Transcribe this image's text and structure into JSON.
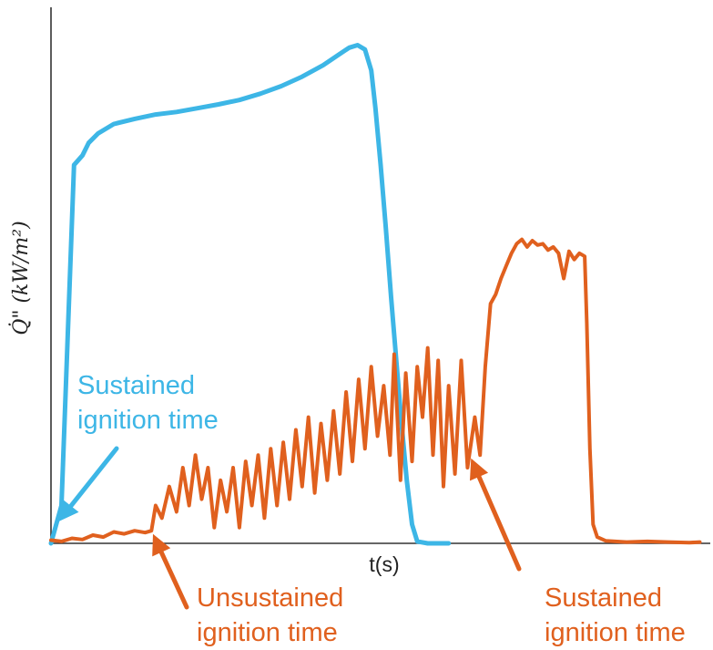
{
  "chart_data": {
    "type": "line",
    "xlabel": "t(s)",
    "ylabel": "Q̇\" (kW/m²)",
    "grid": false,
    "legend": "none",
    "series": [
      {
        "color": "#3db6e6",
        "points": [
          [
            0.0,
            0.0
          ],
          [
            1.0,
            6.0
          ],
          [
            2.2,
            60.0
          ],
          [
            3.0,
            61.5
          ],
          [
            3.6,
            63.5
          ],
          [
            4.5,
            65.0
          ],
          [
            6.0,
            66.5
          ],
          [
            8.0,
            67.3
          ],
          [
            10.0,
            68.0
          ],
          [
            12.0,
            68.4
          ],
          [
            14.0,
            69.0
          ],
          [
            16.0,
            69.6
          ],
          [
            18.0,
            70.3
          ],
          [
            20.0,
            71.3
          ],
          [
            22.0,
            72.5
          ],
          [
            24.0,
            74.0
          ],
          [
            26.0,
            75.8
          ],
          [
            27.5,
            77.5
          ],
          [
            28.5,
            78.6
          ],
          [
            29.3,
            79.0
          ],
          [
            30.0,
            78.3
          ],
          [
            30.6,
            75.0
          ],
          [
            31.0,
            69.0
          ],
          [
            31.5,
            60.0
          ],
          [
            32.0,
            50.0
          ],
          [
            32.5,
            39.0
          ],
          [
            33.0,
            29.0
          ],
          [
            33.5,
            19.0
          ],
          [
            34.0,
            10.0
          ],
          [
            34.5,
            3.0
          ],
          [
            35.0,
            0.3
          ],
          [
            36.0,
            0.0
          ],
          [
            38.0,
            0.0
          ]
        ]
      },
      {
        "color": "#e0601e",
        "points": [
          [
            0.0,
            0.5
          ],
          [
            1.0,
            0.3
          ],
          [
            2.0,
            0.8
          ],
          [
            3.0,
            0.6
          ],
          [
            4.0,
            1.3
          ],
          [
            5.0,
            1.0
          ],
          [
            6.0,
            1.8
          ],
          [
            7.0,
            1.5
          ],
          [
            8.0,
            2.0
          ],
          [
            9.0,
            1.7
          ],
          [
            9.6,
            2.0
          ],
          [
            10.0,
            6.0
          ],
          [
            10.6,
            4.0
          ],
          [
            11.3,
            9.0
          ],
          [
            12.0,
            5.0
          ],
          [
            12.6,
            12.0
          ],
          [
            13.2,
            6.0
          ],
          [
            13.8,
            14.0
          ],
          [
            14.4,
            7.0
          ],
          [
            15.0,
            12.0
          ],
          [
            15.6,
            2.5
          ],
          [
            16.2,
            10.0
          ],
          [
            16.8,
            5.0
          ],
          [
            17.4,
            12.0
          ],
          [
            18.0,
            2.5
          ],
          [
            18.6,
            13.0
          ],
          [
            19.2,
            6.0
          ],
          [
            19.8,
            14.0
          ],
          [
            20.4,
            4.0
          ],
          [
            21.0,
            15.0
          ],
          [
            21.6,
            6.0
          ],
          [
            22.2,
            16.0
          ],
          [
            22.8,
            7.0
          ],
          [
            23.4,
            18.0
          ],
          [
            24.0,
            9.0
          ],
          [
            24.6,
            20.0
          ],
          [
            25.2,
            8.0
          ],
          [
            25.8,
            19.0
          ],
          [
            26.4,
            10.0
          ],
          [
            27.0,
            21.0
          ],
          [
            27.6,
            11.0
          ],
          [
            28.2,
            24.0
          ],
          [
            28.8,
            13.0
          ],
          [
            29.4,
            26.0
          ],
          [
            30.0,
            15.0
          ],
          [
            30.6,
            28.0
          ],
          [
            31.2,
            17.0
          ],
          [
            31.8,
            25.0
          ],
          [
            32.4,
            14.0
          ],
          [
            32.8,
            30.0
          ],
          [
            33.4,
            10.0
          ],
          [
            33.9,
            27.0
          ],
          [
            34.5,
            13.0
          ],
          [
            35.0,
            28.0
          ],
          [
            35.5,
            20.0
          ],
          [
            36.0,
            31.0
          ],
          [
            36.5,
            14.0
          ],
          [
            37.0,
            29.0
          ],
          [
            37.5,
            9.0
          ],
          [
            38.0,
            25.0
          ],
          [
            38.6,
            11.0
          ],
          [
            39.2,
            29.0
          ],
          [
            39.8,
            12.0
          ],
          [
            40.5,
            20.0
          ],
          [
            41.0,
            14.0
          ],
          [
            41.5,
            28.0
          ],
          [
            42.0,
            38.0
          ],
          [
            42.5,
            39.5
          ],
          [
            43.0,
            42.0
          ],
          [
            43.5,
            44.0
          ],
          [
            44.0,
            46.0
          ],
          [
            44.5,
            47.5
          ],
          [
            45.0,
            48.2
          ],
          [
            45.5,
            47.0
          ],
          [
            46.0,
            48.0
          ],
          [
            46.5,
            47.3
          ],
          [
            47.0,
            47.5
          ],
          [
            47.5,
            46.5
          ],
          [
            48.0,
            47.0
          ],
          [
            48.5,
            46.0
          ],
          [
            49.0,
            42.0
          ],
          [
            49.5,
            46.3
          ],
          [
            50.0,
            45.0
          ],
          [
            50.5,
            46.0
          ],
          [
            51.0,
            45.5
          ],
          [
            51.2,
            35.0
          ],
          [
            51.5,
            15.0
          ],
          [
            51.8,
            3.0
          ],
          [
            52.2,
            1.0
          ],
          [
            53.0,
            0.4
          ],
          [
            55.0,
            0.2
          ],
          [
            57.0,
            0.3
          ],
          [
            59.0,
            0.2
          ],
          [
            61.0,
            0.1
          ],
          [
            62.0,
            0.2
          ]
        ]
      }
    ],
    "annotations": [
      {
        "lines": [
          "Sustained",
          "ignition time"
        ],
        "color": "#3db6e6",
        "target": [
          0.5,
          3.0
        ]
      },
      {
        "lines": [
          "Unsustained",
          "ignition time"
        ],
        "color": "#e0601e",
        "target": [
          9.6,
          2.0
        ]
      },
      {
        "lines": [
          "Sustained",
          "ignition time"
        ],
        "color": "#e0601e",
        "target": [
          40.0,
          14.0
        ]
      }
    ],
    "xlim": [
      0,
      63
    ],
    "ylim": [
      0,
      85
    ]
  }
}
